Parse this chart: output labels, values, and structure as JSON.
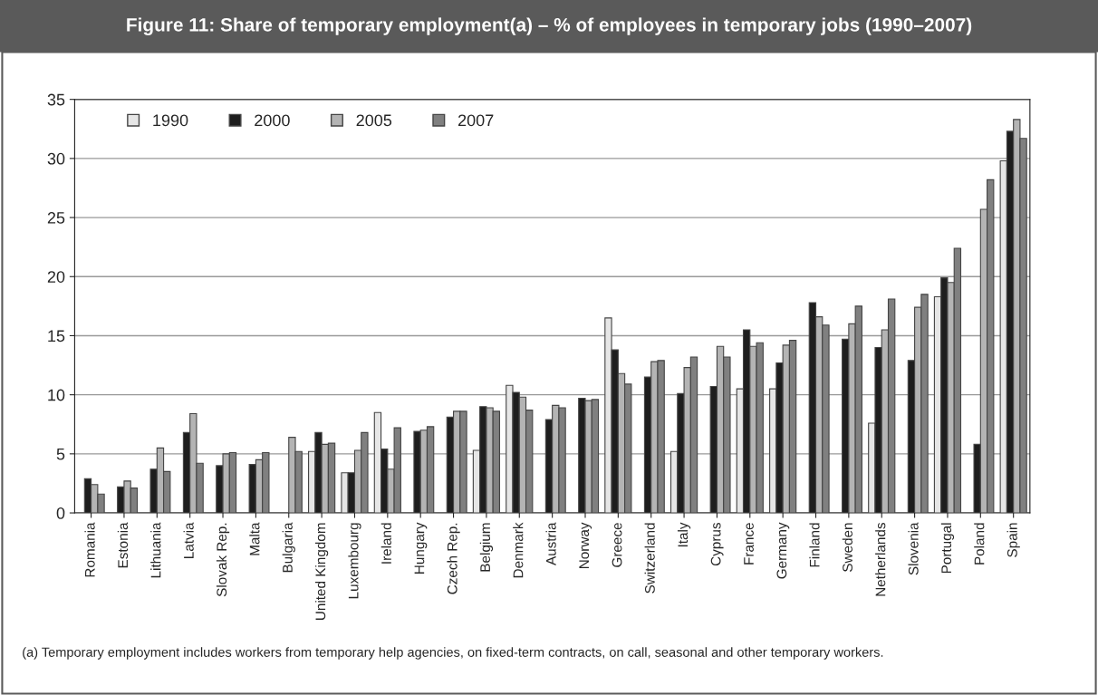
{
  "chart_data": {
    "type": "bar",
    "title": "Figure 11: Share of temporary employment(a) – % of employees in temporary jobs (1990–2007)",
    "categories": [
      "Romania",
      "Estonia",
      "Lithuania",
      "Latvia",
      "Slovak Rep.",
      "Malta",
      "Bulgaria",
      "United Kingdom",
      "Luxembourg",
      "Ireland",
      "Hungary",
      "Czech Rep.",
      "Belgium",
      "Denmark",
      "Austria",
      "Norway",
      "Greece",
      "Switzerland",
      "Italy",
      "Cyprus",
      "France",
      "Germany",
      "Finland",
      "Sweden",
      "Netherlands",
      "Slovenia",
      "Portugal",
      "Poland",
      "Spain"
    ],
    "series": [
      {
        "name": "1990",
        "color": "#e6e6e6",
        "values": [
          null,
          null,
          null,
          null,
          null,
          null,
          null,
          5.2,
          3.4,
          8.5,
          null,
          null,
          5.3,
          10.8,
          null,
          null,
          16.5,
          null,
          5.2,
          null,
          10.5,
          10.5,
          null,
          null,
          7.6,
          null,
          18.3,
          null,
          29.8
        ]
      },
      {
        "name": "2000",
        "color": "#1e1e1e",
        "values": [
          2.9,
          2.2,
          3.7,
          6.8,
          4.0,
          4.1,
          null,
          6.8,
          3.4,
          5.4,
          6.9,
          8.1,
          9.0,
          10.2,
          7.9,
          9.7,
          13.8,
          11.5,
          10.1,
          10.7,
          15.5,
          12.7,
          17.8,
          14.7,
          14.0,
          12.9,
          19.9,
          5.8,
          32.3
        ]
      },
      {
        "name": "2005",
        "color": "#b4b4b4",
        "values": [
          2.4,
          2.7,
          5.5,
          8.4,
          5.0,
          4.5,
          6.4,
          5.8,
          5.3,
          3.7,
          7.0,
          8.6,
          8.9,
          9.8,
          9.1,
          9.5,
          11.8,
          12.8,
          12.3,
          14.1,
          14.1,
          14.2,
          16.6,
          16.0,
          15.5,
          17.4,
          19.5,
          25.7,
          33.3
        ]
      },
      {
        "name": "2007",
        "color": "#808080",
        "values": [
          1.6,
          2.1,
          3.5,
          4.2,
          5.1,
          5.1,
          5.2,
          5.9,
          6.8,
          7.2,
          7.3,
          8.6,
          8.6,
          8.7,
          8.9,
          9.6,
          10.9,
          12.9,
          13.2,
          13.2,
          14.4,
          14.6,
          15.9,
          17.5,
          18.1,
          18.5,
          22.4,
          28.2,
          31.7
        ]
      }
    ],
    "ylim": [
      0,
      35
    ],
    "yticks": [
      0,
      5,
      10,
      15,
      20,
      25,
      30,
      35
    ],
    "grid": "y",
    "legend": "top left",
    "annotations": [
      "(a) Temporary employment includes workers from temporary help agencies, on fixed-term contracts, on call, seasonal and other temporary workers."
    ]
  }
}
